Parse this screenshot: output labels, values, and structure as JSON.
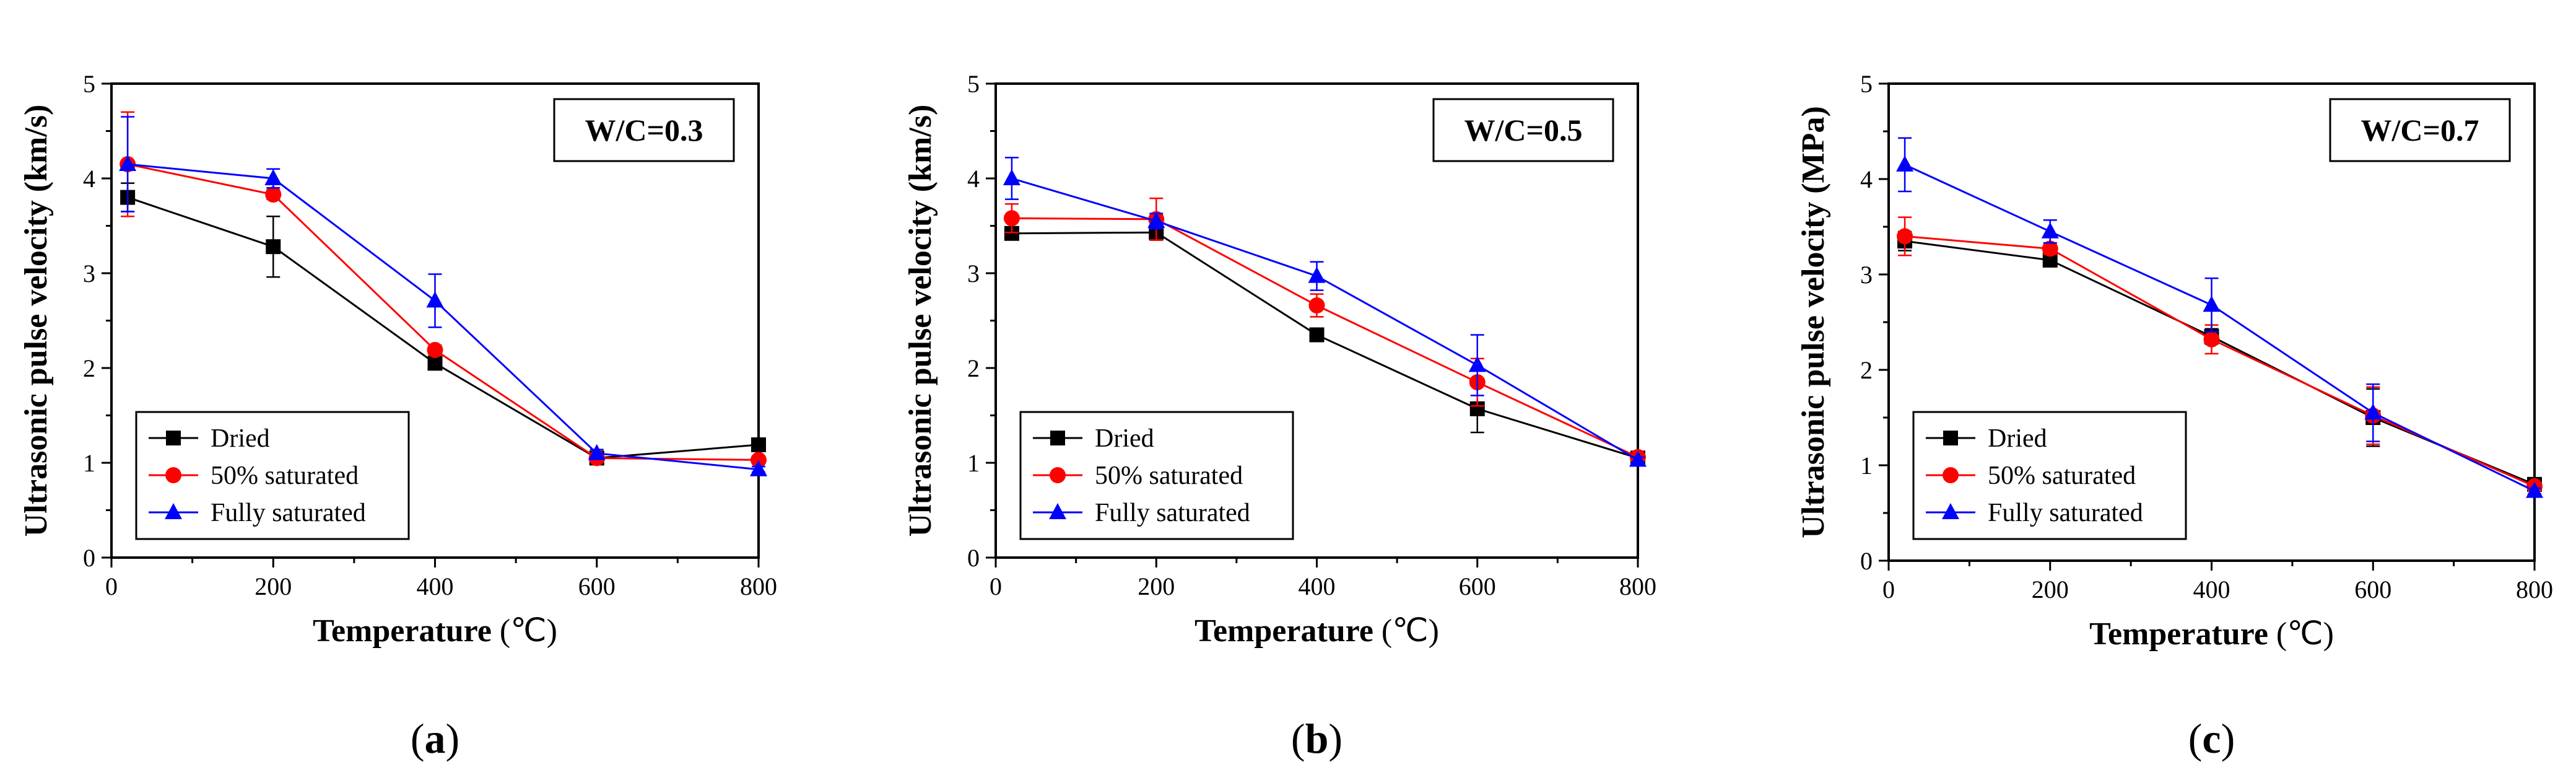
{
  "chart_data": [
    {
      "type": "line",
      "panel_label": "a",
      "annotation": "W/C=0.3",
      "xlabel": "Temperature",
      "xunit": "(℃)",
      "ylabel": "Ultrasonic pulse velocity (km/s)",
      "xlim": [
        0,
        800
      ],
      "ylim": [
        0,
        5
      ],
      "xticks": [
        "0",
        "200",
        "400",
        "600",
        "800"
      ],
      "yticks": [
        "0",
        "1",
        "2",
        "3",
        "4",
        "5"
      ],
      "legend_position": "bottom-left",
      "x": [
        20,
        200,
        400,
        600,
        800
      ],
      "series": [
        {
          "name": "Dried",
          "color": "#000000",
          "marker": "square",
          "values": [
            3.8,
            3.28,
            2.05,
            1.05,
            1.19
          ],
          "errors": [
            0.15,
            0.32,
            0.05,
            0.03,
            0.04
          ]
        },
        {
          "name": "50% saturated",
          "color": "#ff0000",
          "marker": "circle",
          "values": [
            4.15,
            3.83,
            2.19,
            1.05,
            1.03
          ],
          "errors": [
            0.55,
            0.05,
            0.05,
            0.03,
            0.03
          ]
        },
        {
          "name": "Fully saturated",
          "color": "#0000ff",
          "marker": "triangle",
          "values": [
            4.15,
            4.0,
            2.71,
            1.1,
            0.93
          ],
          "errors": [
            0.5,
            0.1,
            0.28,
            0.04,
            0.03
          ]
        }
      ]
    },
    {
      "type": "line",
      "panel_label": "b",
      "annotation": "W/C=0.5",
      "xlabel": "Temperature",
      "xunit": "(℃)",
      "ylabel": "Ultrasonic pulse velocity (km/s)",
      "xlim": [
        0,
        800
      ],
      "ylim": [
        0,
        5
      ],
      "xticks": [
        "0",
        "200",
        "400",
        "600",
        "800"
      ],
      "yticks": [
        "0",
        "1",
        "2",
        "3",
        "4",
        "5"
      ],
      "legend_position": "bottom-left",
      "x": [
        20,
        200,
        400,
        600,
        800
      ],
      "series": [
        {
          "name": "Dried",
          "color": "#000000",
          "marker": "square",
          "values": [
            3.42,
            3.43,
            2.35,
            1.57,
            1.05
          ],
          "errors": [
            0.04,
            0.08,
            0.04,
            0.25,
            0.03
          ]
        },
        {
          "name": "50% saturated",
          "color": "#ff0000",
          "marker": "circle",
          "values": [
            3.58,
            3.57,
            2.66,
            1.85,
            1.06
          ],
          "errors": [
            0.15,
            0.22,
            0.12,
            0.25,
            0.03
          ]
        },
        {
          "name": "Fully saturated",
          "color": "#0000ff",
          "marker": "triangle",
          "values": [
            4.0,
            3.55,
            2.97,
            2.03,
            1.03
          ],
          "errors": [
            0.22,
            0.08,
            0.15,
            0.32,
            0.03
          ]
        }
      ]
    },
    {
      "type": "line",
      "panel_label": "c",
      "annotation": "W/C=0.7",
      "xlabel": "Temperature",
      "xunit": "(℃)",
      "ylabel": "Ultrasonic pulse velocity (MPa)",
      "xlim": [
        0,
        800
      ],
      "ylim": [
        0,
        5
      ],
      "xticks": [
        "0",
        "200",
        "400",
        "600",
        "800"
      ],
      "yticks": [
        "0",
        "1",
        "2",
        "3",
        "4",
        "5"
      ],
      "legend_position": "bottom-left",
      "x": [
        20,
        200,
        400,
        600,
        800
      ],
      "series": [
        {
          "name": "Dried",
          "color": "#000000",
          "marker": "square",
          "values": [
            3.35,
            3.15,
            2.35,
            1.5,
            0.8
          ],
          "errors": [
            0.1,
            0.06,
            0.08,
            0.3,
            0.03
          ]
        },
        {
          "name": "50% saturated",
          "color": "#ff0000",
          "marker": "circle",
          "values": [
            3.4,
            3.27,
            2.32,
            1.52,
            0.78
          ],
          "errors": [
            0.2,
            0.06,
            0.15,
            0.3,
            0.03
          ]
        },
        {
          "name": "Fully saturated",
          "color": "#0000ff",
          "marker": "triangle",
          "values": [
            4.15,
            3.45,
            2.68,
            1.55,
            0.73
          ],
          "errors": [
            0.28,
            0.12,
            0.28,
            0.3,
            0.03
          ]
        }
      ]
    }
  ]
}
